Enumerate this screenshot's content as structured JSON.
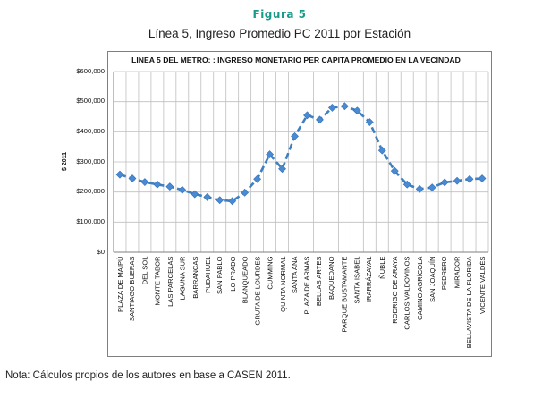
{
  "figure_label": "Figura 5",
  "figure_title": "Línea 5, Ingreso Promedio PC 2011 por Estación",
  "note": "Nota: Cálculos propios de los autores en base a CASEN 2011.",
  "colors": {
    "line": "#3f80c0",
    "marker": "#4a8ad4",
    "grid": "#bfbfbf",
    "label_accent": "#1a9a8a"
  },
  "chart_data": {
    "type": "line",
    "title": "LINEA 5 DEL METRO: : INGRESO MONETARIO PER CAPITA PROMEDIO EN LA VECINDAD",
    "xlabel": "",
    "ylabel": "$ 2011",
    "ylim": [
      0,
      600000
    ],
    "yticks": [
      0,
      100000,
      200000,
      300000,
      400000,
      500000,
      600000
    ],
    "ytick_labels": [
      "$0",
      "$100,000",
      "$200,000",
      "$300,000",
      "$400,000",
      "$500,000",
      "$600,000"
    ],
    "grid": true,
    "categories": [
      "PLAZA DE MAIPÚ",
      "SANTIAGO BUERAS",
      "DEL SOL",
      "MONTE TABOR",
      "LAS PARCELAS",
      "LAGUNA SUR",
      "BARRANCAS",
      "PUDAHUEL",
      "SAN PABLO",
      "LO PRADO",
      "BLANQUEADO",
      "GRUTA DE LOURDES",
      "CUMMING",
      "QUINTA NORMAL",
      "SANTA ANA",
      "PLAZA DE ARMAS",
      "BELLAS ARTES",
      "BAQUEDANO",
      "PARQUE BUSTAMANTE",
      "SANTA ISABEL",
      "IRARRÁZAVAL",
      "ÑUBLE",
      "RODRIGO DE ARAYA",
      "CARLOS VALDOVINOS",
      "CAMINO AGRÍCOLA",
      "SAN JOAQUÍN",
      "PEDRERO",
      "MIRADOR",
      "BELLAVISTA DE LA FLORIDA",
      "VICENTE VALDÉS"
    ],
    "series": [
      {
        "name": "Ingreso monetario per cápita promedio",
        "values": [
          258000,
          245000,
          233000,
          225000,
          218000,
          207000,
          193000,
          183000,
          173000,
          170000,
          198000,
          243000,
          325000,
          277000,
          385000,
          455000,
          440000,
          480000,
          485000,
          470000,
          432000,
          338000,
          270000,
          225000,
          210000,
          215000,
          232000,
          237000,
          243000,
          245000
        ]
      }
    ]
  }
}
